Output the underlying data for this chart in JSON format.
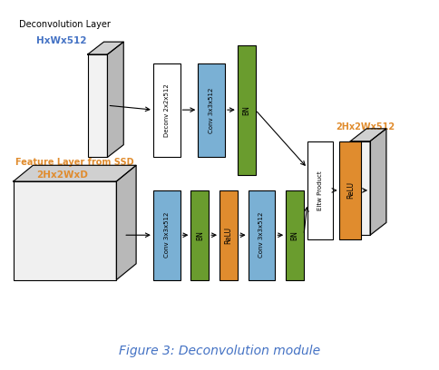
{
  "title": "Figure 3: Deconvolution module",
  "title_color": "#4472c4",
  "bg_color": "#ffffff",
  "colors": {
    "blue": "#7ab0d4",
    "green": "#6a9c2e",
    "orange": "#e08c2e",
    "white_box": "#ffffff",
    "face_light": "#d8d8d8",
    "face_white": "#f0f0f0",
    "side_gray": "#b0b0b0",
    "top_gray": "#c8c8c8"
  },
  "top_label1": "Deconvolution Layer",
  "top_label1_color": "#000000",
  "top_label2": "HxWx512",
  "top_label2_color": "#4472c4",
  "bottom_label1": "Feature Layer from SSD",
  "bottom_label1_color": "#e08c2e",
  "bottom_label2": "2Hx2WxD",
  "bottom_label2_color": "#e08c2e",
  "output_label": "2Hx2Wx512",
  "output_label_color": "#e08c2e"
}
